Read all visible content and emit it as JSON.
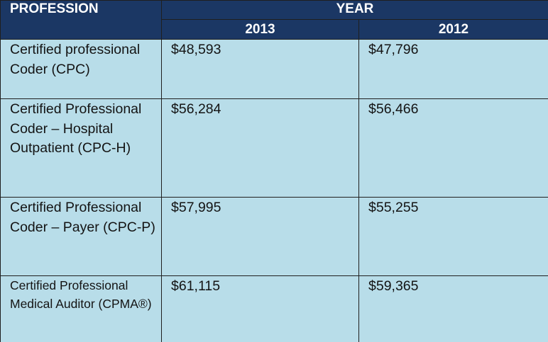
{
  "table": {
    "header": {
      "profession_label": "PROFESSION",
      "year_label": "YEAR",
      "years": [
        "2013",
        "2012"
      ]
    },
    "rows": [
      {
        "profession": "Certified professional Coder (CPC)",
        "y2013": "$48,593",
        "y2012": "$47,796"
      },
      {
        "profession": "Certified Professional Coder – Hospital Outpatient (CPC-H)",
        "y2013": "$56,284",
        "y2012": "$56,466"
      },
      {
        "profession": "Certified Professional Coder – Payer (CPC-P)",
        "y2013": "$57,995",
        "y2012": "$55,255"
      },
      {
        "profession": "Certified Professional Medical Auditor (CPMA®)",
        "y2013": "$61,115",
        "y2012": "$59,365"
      }
    ]
  },
  "colors": {
    "header_bg": "#1b3764",
    "cell_bg": "#b8dde9",
    "border": "#1f1f1f"
  }
}
